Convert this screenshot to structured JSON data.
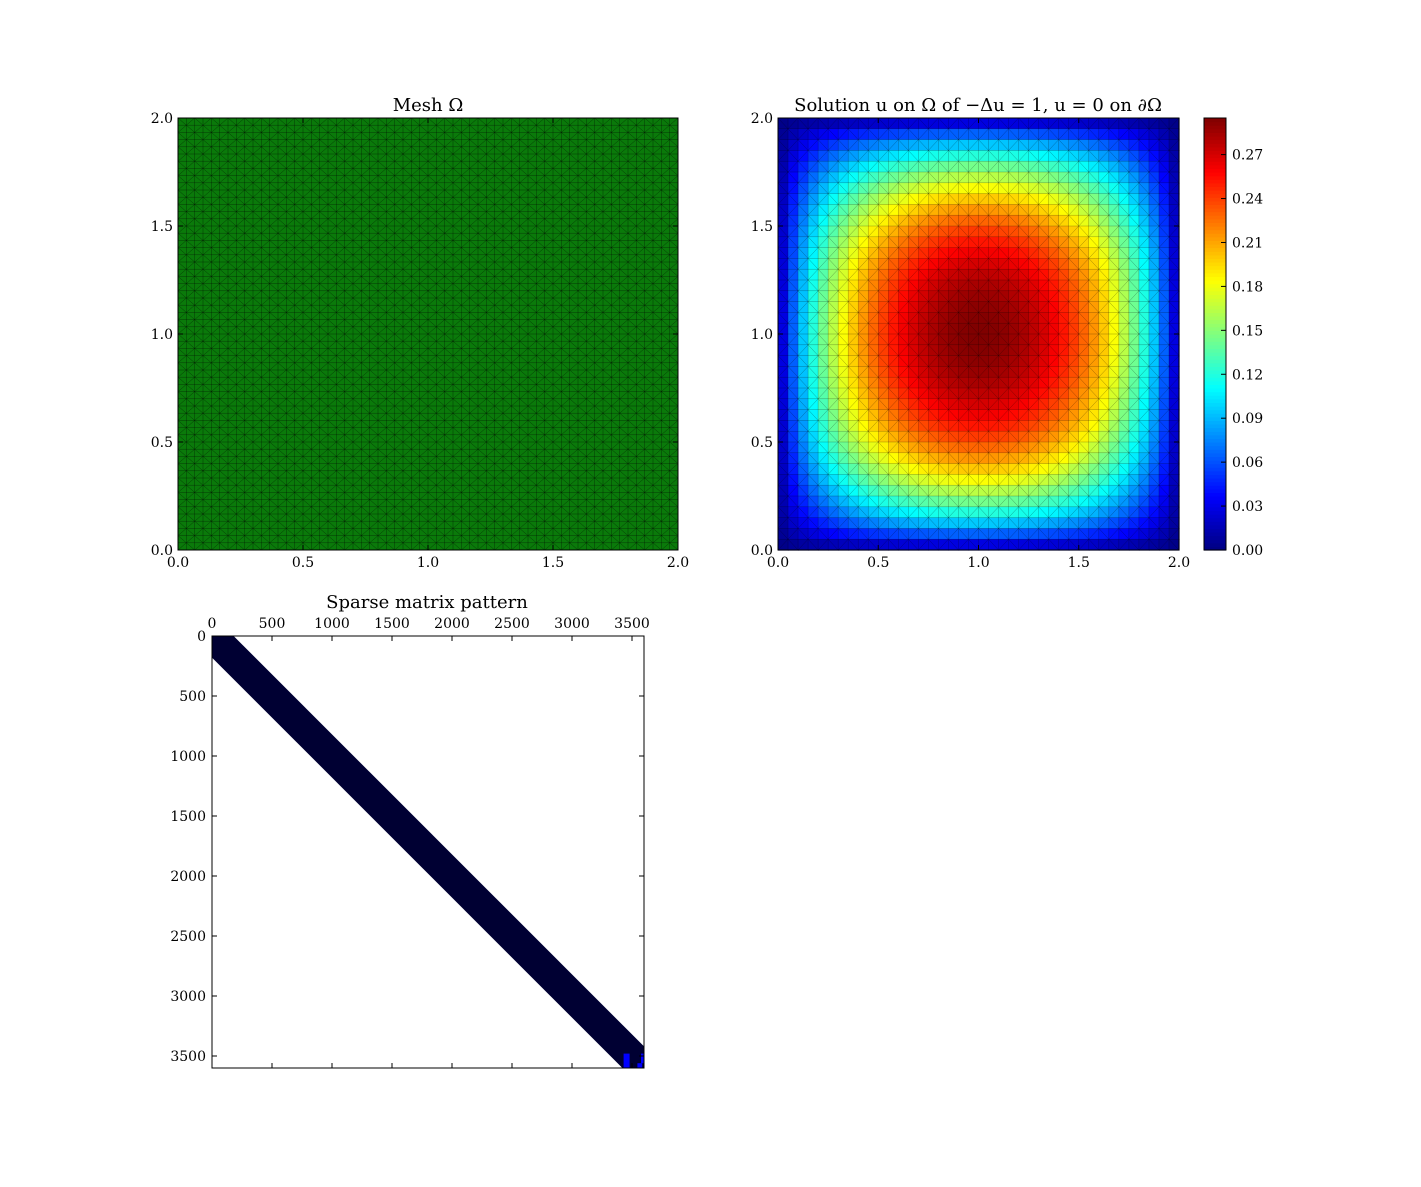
{
  "figure": {
    "background": "#ffffff"
  },
  "chart_data": [
    {
      "id": "mesh",
      "type": "heatmap",
      "title": "Mesh Ω",
      "xlim": [
        0.0,
        2.0
      ],
      "ylim": [
        0.0,
        2.0
      ],
      "xticks": [
        "0.0",
        "0.5",
        "1.0",
        "1.5",
        "2.0"
      ],
      "yticks": [
        "0.0",
        "0.5",
        "1.0",
        "1.5",
        "2.0"
      ],
      "grid_n": 60,
      "fill_color": "#0a7a0a",
      "edge_color": "#000000"
    },
    {
      "id": "solution",
      "type": "heatmap",
      "title": "Solution u on Ω of −Δu = 1,  u = 0 on ∂Ω",
      "xlim": [
        0.0,
        2.0
      ],
      "ylim": [
        0.0,
        2.0
      ],
      "xticks": [
        "0.0",
        "0.5",
        "1.0",
        "1.5",
        "2.0"
      ],
      "yticks": [
        "0.0",
        "0.5",
        "1.0",
        "1.5",
        "2.0"
      ],
      "grid_n": 40,
      "colormap": "jet",
      "vmin": 0.0,
      "vmax": 0.295,
      "center": [
        1.0,
        1.0
      ],
      "colorbar_ticks": [
        "0.00",
        "0.03",
        "0.06",
        "0.09",
        "0.12",
        "0.15",
        "0.18",
        "0.21",
        "0.24",
        "0.27"
      ],
      "colorbar_values": [
        0.0,
        0.03,
        0.06,
        0.09,
        0.12,
        0.15,
        0.18,
        0.21,
        0.24,
        0.27
      ]
    },
    {
      "id": "sparse",
      "type": "heatmap",
      "title": "Sparse matrix pattern",
      "size": 3600,
      "bandwidth": 180,
      "xticks": [
        "0",
        "500",
        "1000",
        "1500",
        "2000",
        "2500",
        "3000",
        "3500"
      ],
      "yticks": [
        "0",
        "500",
        "1000",
        "1500",
        "2000",
        "2500",
        "3000",
        "3500"
      ],
      "tick_values": [
        0,
        500,
        1000,
        1500,
        2000,
        2500,
        3000,
        3500
      ],
      "band_color": "#000033",
      "corner_color": "#0000ff"
    }
  ]
}
